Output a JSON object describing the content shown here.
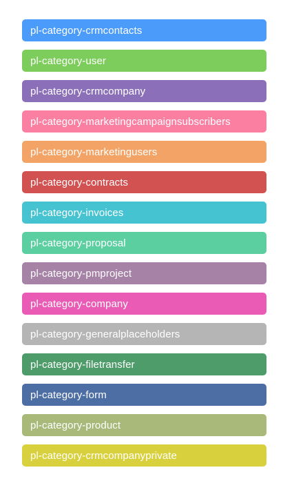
{
  "categories": [
    {
      "label": "pl-category-crmcontacts",
      "color": "#4A9BFA"
    },
    {
      "label": "pl-category-user",
      "color": "#7DCD5C"
    },
    {
      "label": "pl-category-crmcompany",
      "color": "#8B6FB8"
    },
    {
      "label": "pl-category-marketingcampaignsubscribers",
      "color": "#FA7FA1"
    },
    {
      "label": "pl-category-marketingusers",
      "color": "#F2A365"
    },
    {
      "label": "pl-category-contracts",
      "color": "#D25151"
    },
    {
      "label": "pl-category-invoices",
      "color": "#45C3D1"
    },
    {
      "label": "pl-category-proposal",
      "color": "#5CCFA1"
    },
    {
      "label": "pl-category-pmproject",
      "color": "#A682A6"
    },
    {
      "label": "pl-category-company",
      "color": "#E95BB5"
    },
    {
      "label": "pl-category-generalplaceholders",
      "color": "#B5B5B5"
    },
    {
      "label": "pl-category-filetransfer",
      "color": "#4E9C69"
    },
    {
      "label": "pl-category-form",
      "color": "#4C6EA4"
    },
    {
      "label": "pl-category-product",
      "color": "#A8B97A"
    },
    {
      "label": "pl-category-crmcompanyprivate",
      "color": "#D8D03C"
    }
  ]
}
